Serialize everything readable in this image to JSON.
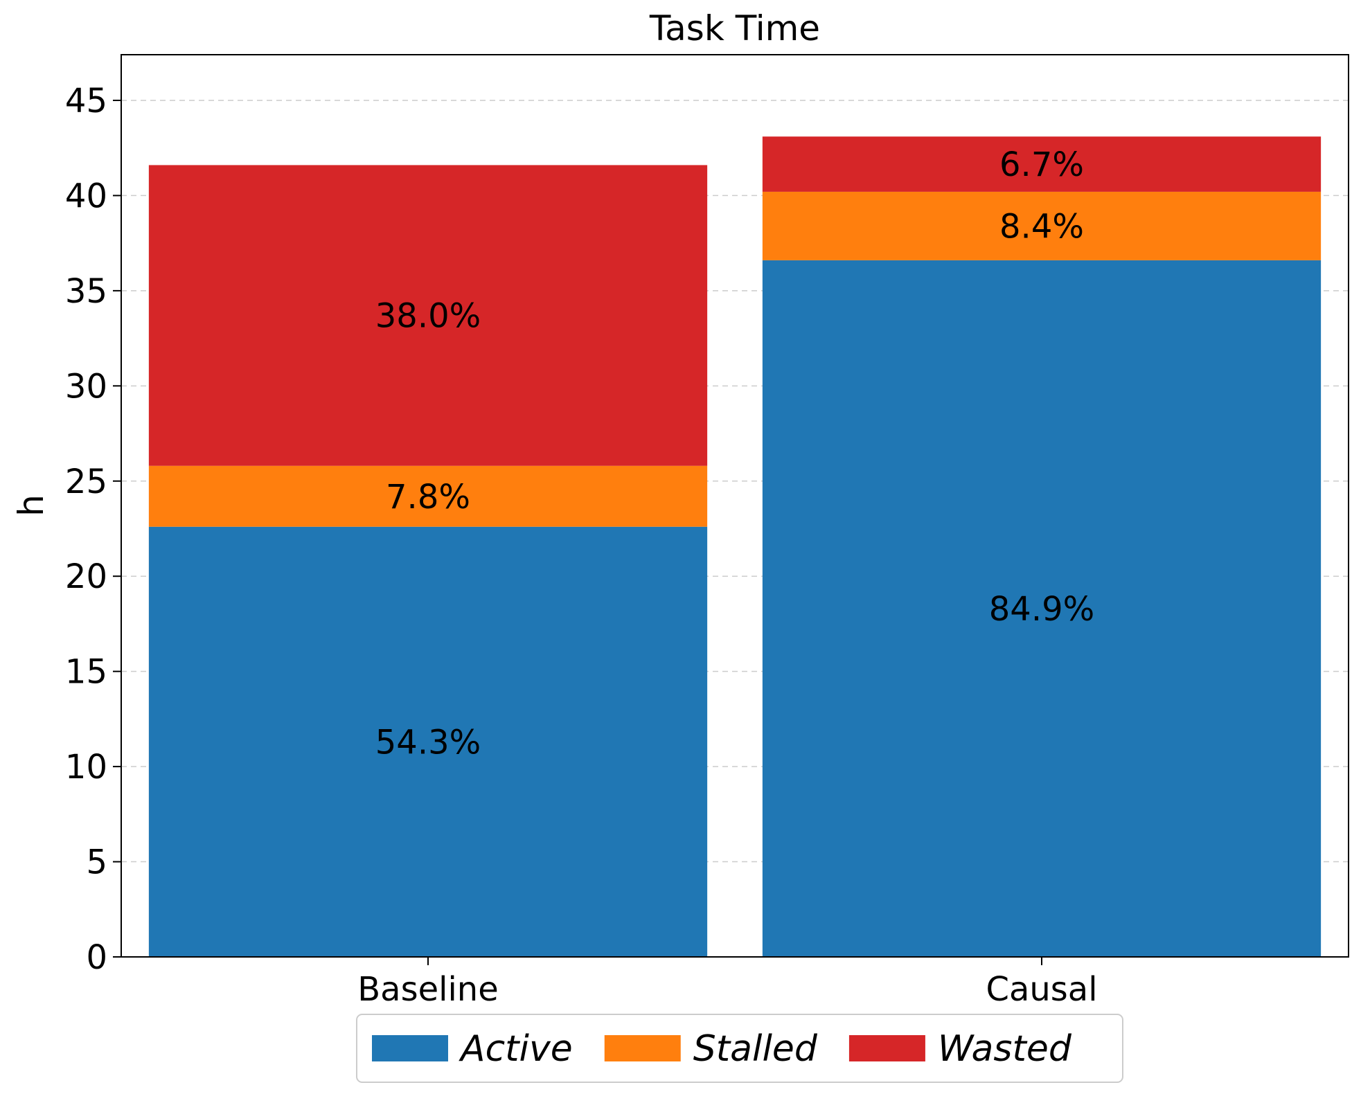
{
  "chart_data": {
    "type": "bar",
    "stacked": true,
    "title": "Task Time",
    "xlabel": "",
    "ylabel": "h",
    "ylim": [
      0,
      47.4
    ],
    "yticks": [
      0,
      5,
      10,
      15,
      20,
      25,
      30,
      35,
      40,
      45
    ],
    "grid": "horizontal dashed",
    "legend_position": "bottom-center",
    "categories": [
      "Baseline",
      "Causal"
    ],
    "series": [
      {
        "name": "Active",
        "color": "#2077b4",
        "values": [
          22.6,
          36.6
        ],
        "labels": [
          "54.3%",
          "84.9%"
        ]
      },
      {
        "name": "Stalled",
        "color": "#ff7f0e",
        "values": [
          3.2,
          3.6
        ],
        "labels": [
          "7.8%",
          "8.4%"
        ]
      },
      {
        "name": "Wasted",
        "color": "#d62628",
        "values": [
          15.8,
          2.9
        ],
        "labels": [
          "38.0%",
          "6.7%"
        ]
      }
    ]
  }
}
